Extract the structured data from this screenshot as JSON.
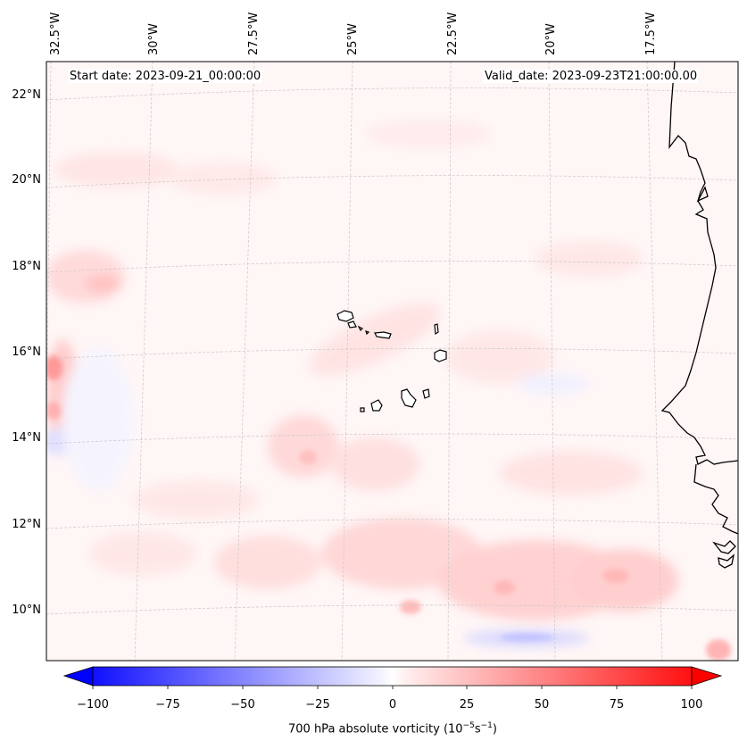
{
  "map": {
    "start_date": "Start date: 2023-09-21_00:00:00",
    "valid_date": "Valid_date: 2023-09-23T21:00:00.00",
    "lon_labels": [
      "32.5°W",
      "30°W",
      "27.5°W",
      "25°W",
      "22.5°W",
      "20°W",
      "17.5°W"
    ],
    "lat_labels": [
      "22°N",
      "20°N",
      "18°N",
      "16°N",
      "14°N",
      "12°N",
      "10°N"
    ],
    "colorbar": {
      "ticks": [
        "−100",
        "−75",
        "−50",
        "−25",
        "0",
        "25",
        "50",
        "75",
        "100"
      ],
      "title": "700 hPa absolute vorticity (10",
      "title_sup1": "−5",
      "title_mid": "s",
      "title_sup2": "−1",
      "title_end": ")",
      "cmap": "bwr",
      "range": [
        -100,
        100
      ]
    },
    "colors": {
      "negative": "#0000ff",
      "positive": "#ff0000",
      "neutral": "#ffffff",
      "coast": "#000000"
    }
  }
}
